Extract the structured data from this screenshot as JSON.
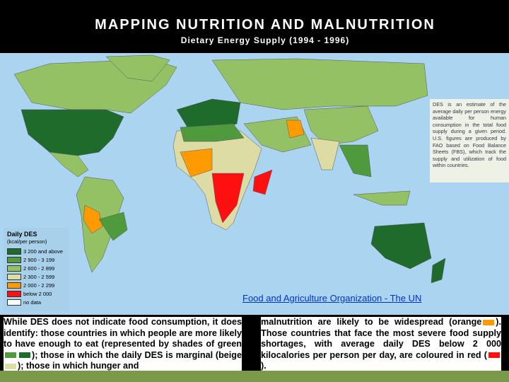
{
  "header": {
    "title": "MAPPING NUTRITION AND MALNUTRITION",
    "subtitle": "Dietary Energy Supply (1994 - 1996)"
  },
  "legend": {
    "title": "Daily DES",
    "unit": "(kcal/per person)",
    "items": [
      {
        "label": "3 200 and above",
        "color": "#1f6b2b"
      },
      {
        "label": "2 900 - 3 199",
        "color": "#4e9a3c"
      },
      {
        "label": "2 600 - 2 899",
        "color": "#93c163"
      },
      {
        "label": "2 300 - 2 599",
        "color": "#dcdca4"
      },
      {
        "label": "2 000 - 2 299",
        "color": "#ff9a00"
      },
      {
        "label": "below 2 000",
        "color": "#ff1010"
      },
      {
        "label": "no data",
        "color": "#ffffff"
      }
    ]
  },
  "info_box": {
    "text": "DES is an estimate of the average daily per person energy available for human consumption in the total food supply during a given period. U.S. figures are produced by FAO based on Food Balance Sheets (FBS), which track the supply and utilization of food within countries."
  },
  "source_link": "Food and Agriculture Organization - The UN",
  "caption": {
    "left": [
      "While DES does not indicate food consumption, it does identify: those countries in which people are more likely to have enough to eat (represented by shades of green",
      "); those in which the daily DES is marginal (beige",
      "); those in which hunger and"
    ],
    "right": [
      "malnutrition are likely to be widespread (orange",
      "). Those countries that face the most severe food supply shortages, with average daily DES below 2 000 kilocalories per person per day, are coloured in red (",
      ")."
    ]
  }
}
